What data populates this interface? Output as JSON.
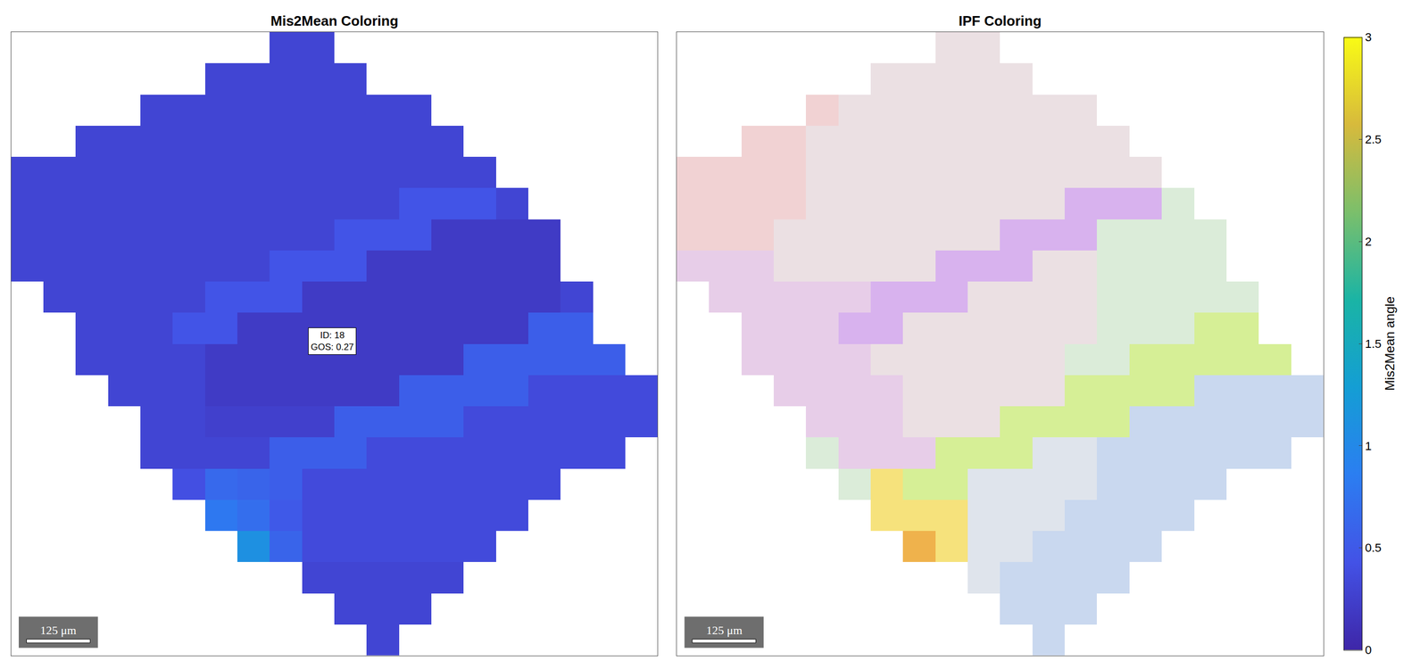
{
  "chart_data": [
    {
      "type": "heatmap",
      "title": "Mis2Mean Coloring",
      "xlim": [
        0,
        1270
      ],
      "ylim": [
        0,
        1230
      ],
      "tick_labels": false,
      "colorbar": {
        "title": "Mis2Mean angle",
        "range": [
          0,
          3
        ],
        "ticks": [
          0,
          0.5,
          1,
          1.5,
          2,
          2.5,
          3
        ]
      },
      "annotations": [
        {
          "x": 631,
          "y": 620,
          "lines": [
            "ID: 18",
            "GOS: 0.27"
          ]
        }
      ],
      "scale_bar": {
        "length": 125,
        "label": "125 μm"
      },
      "cells": [
        [
          null,
          null,
          null,
          null,
          null,
          null,
          null,
          null,
          0.3,
          0.3,
          null,
          null,
          null,
          null,
          null,
          null,
          null,
          null,
          null,
          null
        ],
        [
          null,
          null,
          null,
          null,
          null,
          null,
          0.3,
          0.3,
          0.3,
          0.3,
          0.3,
          null,
          null,
          null,
          null,
          null,
          null,
          null,
          null,
          null
        ],
        [
          null,
          null,
          null,
          null,
          0.3,
          0.3,
          0.3,
          0.3,
          0.3,
          0.3,
          0.3,
          0.3,
          0.3,
          null,
          null,
          null,
          null,
          null,
          null,
          null
        ],
        [
          null,
          null,
          0.3,
          0.3,
          0.3,
          0.3,
          0.3,
          0.3,
          0.3,
          0.3,
          0.3,
          0.3,
          0.3,
          0.3,
          null,
          null,
          null,
          null,
          null,
          null
        ],
        [
          0.3,
          0.3,
          0.3,
          0.3,
          0.3,
          0.3,
          0.3,
          0.3,
          0.3,
          0.3,
          0.3,
          0.3,
          0.3,
          0.3,
          0.3,
          null,
          null,
          null,
          null,
          null
        ],
        [
          0.3,
          0.3,
          0.3,
          0.3,
          0.3,
          0.3,
          0.3,
          0.3,
          0.3,
          0.3,
          0.3,
          0.3,
          0.45,
          0.45,
          0.45,
          0.3,
          null,
          null,
          null,
          null
        ],
        [
          0.3,
          0.3,
          0.3,
          0.3,
          0.3,
          0.3,
          0.3,
          0.3,
          0.3,
          0.3,
          0.45,
          0.45,
          0.45,
          0.2,
          0.2,
          0.2,
          0.2,
          null,
          null,
          null
        ],
        [
          0.3,
          0.3,
          0.3,
          0.3,
          0.3,
          0.3,
          0.3,
          0.3,
          0.45,
          0.45,
          0.45,
          0.2,
          0.2,
          0.2,
          0.2,
          0.2,
          0.2,
          null,
          null,
          null
        ],
        [
          null,
          0.3,
          0.3,
          0.3,
          0.3,
          0.3,
          0.45,
          0.45,
          0.45,
          0.2,
          0.2,
          0.2,
          0.2,
          0.2,
          0.2,
          0.2,
          0.2,
          0.3,
          null,
          null
        ],
        [
          null,
          null,
          0.3,
          0.3,
          0.3,
          0.45,
          0.45,
          0.2,
          0.2,
          0.2,
          0.2,
          0.2,
          0.2,
          0.2,
          0.2,
          0.2,
          0.55,
          0.55,
          null,
          null
        ],
        [
          null,
          null,
          0.3,
          0.3,
          0.3,
          0.3,
          0.2,
          0.2,
          0.2,
          0.2,
          0.2,
          0.2,
          0.2,
          0.2,
          0.55,
          0.55,
          0.55,
          0.55,
          0.55,
          null
        ],
        [
          null,
          null,
          null,
          0.3,
          0.3,
          0.3,
          0.2,
          0.2,
          0.2,
          0.2,
          0.2,
          0.2,
          0.55,
          0.55,
          0.55,
          0.55,
          0.35,
          0.35,
          0.35,
          0.35
        ],
        [
          null,
          null,
          null,
          null,
          0.3,
          0.3,
          0.25,
          0.25,
          0.25,
          0.25,
          0.55,
          0.55,
          0.55,
          0.55,
          0.35,
          0.35,
          0.35,
          0.35,
          0.35,
          0.35
        ],
        [
          null,
          null,
          null,
          null,
          0.3,
          0.3,
          0.3,
          0.3,
          0.55,
          0.55,
          0.55,
          0.35,
          0.35,
          0.35,
          0.35,
          0.35,
          0.35,
          0.35,
          0.35,
          null
        ],
        [
          null,
          null,
          null,
          null,
          null,
          0.4,
          0.65,
          0.6,
          0.55,
          0.35,
          0.35,
          0.35,
          0.35,
          0.35,
          0.35,
          0.35,
          0.35,
          null,
          null,
          null
        ],
        [
          null,
          null,
          null,
          null,
          null,
          null,
          0.8,
          0.7,
          0.5,
          0.35,
          0.35,
          0.35,
          0.35,
          0.35,
          0.35,
          0.35,
          null,
          null,
          null,
          null
        ],
        [
          null,
          null,
          null,
          null,
          null,
          null,
          null,
          1.1,
          0.6,
          0.35,
          0.35,
          0.35,
          0.35,
          0.35,
          0.35,
          null,
          null,
          null,
          null,
          null
        ],
        [
          null,
          null,
          null,
          null,
          null,
          null,
          null,
          null,
          null,
          0.3,
          0.3,
          0.3,
          0.3,
          0.3,
          null,
          null,
          null,
          null,
          null,
          null
        ],
        [
          null,
          null,
          null,
          null,
          null,
          null,
          null,
          null,
          null,
          null,
          0.3,
          0.3,
          0.3,
          null,
          null,
          null,
          null,
          null,
          null,
          null
        ],
        [
          null,
          null,
          null,
          null,
          null,
          null,
          null,
          null,
          null,
          null,
          null,
          0.3,
          null,
          null,
          null,
          null,
          null,
          null,
          null,
          null
        ]
      ]
    },
    {
      "type": "heatmap",
      "title": "IPF Coloring",
      "xlim": [
        0,
        1270
      ],
      "ylim": [
        0,
        1230
      ],
      "tick_labels": false,
      "scale_bar": {
        "length": 125,
        "label": "125 μm"
      },
      "colors": [
        "#ebe0e3",
        "#f1d2d3",
        "#d8b2ee",
        "#e7cde8",
        "#d6ef96",
        "#f6e27c",
        "#efb24c",
        "#c9d8ef",
        "#dbecd9",
        "#dfe4ec"
      ],
      "cells": [
        [
          null,
          null,
          null,
          null,
          null,
          null,
          null,
          null,
          0,
          0,
          null,
          null,
          null,
          null,
          null,
          null,
          null,
          null,
          null,
          null
        ],
        [
          null,
          null,
          null,
          null,
          null,
          null,
          0,
          0,
          0,
          0,
          0,
          null,
          null,
          null,
          null,
          null,
          null,
          null,
          null,
          null
        ],
        [
          null,
          null,
          null,
          null,
          1,
          0,
          0,
          0,
          0,
          0,
          0,
          0,
          0,
          null,
          null,
          null,
          null,
          null,
          null,
          null
        ],
        [
          null,
          null,
          1,
          1,
          0,
          0,
          0,
          0,
          0,
          0,
          0,
          0,
          0,
          0,
          null,
          null,
          null,
          null,
          null,
          null
        ],
        [
          1,
          1,
          1,
          1,
          0,
          0,
          0,
          0,
          0,
          0,
          0,
          0,
          0,
          0,
          0,
          null,
          null,
          null,
          null,
          null
        ],
        [
          1,
          1,
          1,
          1,
          0,
          0,
          0,
          0,
          0,
          0,
          0,
          0,
          2,
          2,
          2,
          8,
          null,
          null,
          null,
          null
        ],
        [
          1,
          1,
          1,
          0,
          0,
          0,
          0,
          0,
          0,
          0,
          2,
          2,
          2,
          8,
          8,
          8,
          8,
          null,
          null,
          null
        ],
        [
          3,
          3,
          3,
          0,
          0,
          0,
          0,
          0,
          2,
          2,
          2,
          0,
          0,
          8,
          8,
          8,
          8,
          null,
          null,
          null
        ],
        [
          null,
          3,
          3,
          3,
          3,
          3,
          2,
          2,
          2,
          0,
          0,
          0,
          0,
          8,
          8,
          8,
          8,
          8,
          null,
          null
        ],
        [
          null,
          null,
          3,
          3,
          3,
          2,
          2,
          0,
          0,
          0,
          0,
          0,
          0,
          8,
          8,
          8,
          4,
          4,
          null,
          null
        ],
        [
          null,
          null,
          3,
          3,
          3,
          3,
          0,
          0,
          0,
          0,
          0,
          0,
          8,
          8,
          4,
          4,
          4,
          4,
          4,
          null
        ],
        [
          null,
          null,
          null,
          3,
          3,
          3,
          3,
          0,
          0,
          0,
          0,
          0,
          4,
          4,
          4,
          4,
          7,
          7,
          7,
          7
        ],
        [
          null,
          null,
          null,
          null,
          3,
          3,
          3,
          0,
          0,
          0,
          4,
          4,
          4,
          4,
          7,
          7,
          7,
          7,
          7,
          7
        ],
        [
          null,
          null,
          null,
          null,
          8,
          3,
          3,
          3,
          4,
          4,
          4,
          9,
          9,
          7,
          7,
          7,
          7,
          7,
          7,
          null
        ],
        [
          null,
          null,
          null,
          null,
          null,
          8,
          5,
          4,
          4,
          9,
          9,
          9,
          9,
          7,
          7,
          7,
          7,
          null,
          null,
          null
        ],
        [
          null,
          null,
          null,
          null,
          null,
          null,
          5,
          5,
          5,
          9,
          9,
          9,
          7,
          7,
          7,
          7,
          null,
          null,
          null,
          null
        ],
        [
          null,
          null,
          null,
          null,
          null,
          null,
          null,
          6,
          5,
          9,
          9,
          7,
          7,
          7,
          7,
          null,
          null,
          null,
          null,
          null
        ],
        [
          null,
          null,
          null,
          null,
          null,
          null,
          null,
          null,
          null,
          9,
          7,
          7,
          7,
          7,
          null,
          null,
          null,
          null,
          null,
          null
        ],
        [
          null,
          null,
          null,
          null,
          null,
          null,
          null,
          null,
          null,
          null,
          7,
          7,
          7,
          null,
          null,
          null,
          null,
          null,
          null,
          null
        ],
        [
          null,
          null,
          null,
          null,
          null,
          null,
          null,
          null,
          null,
          null,
          null,
          7,
          null,
          null,
          null,
          null,
          null,
          null,
          null,
          null
        ]
      ]
    }
  ]
}
